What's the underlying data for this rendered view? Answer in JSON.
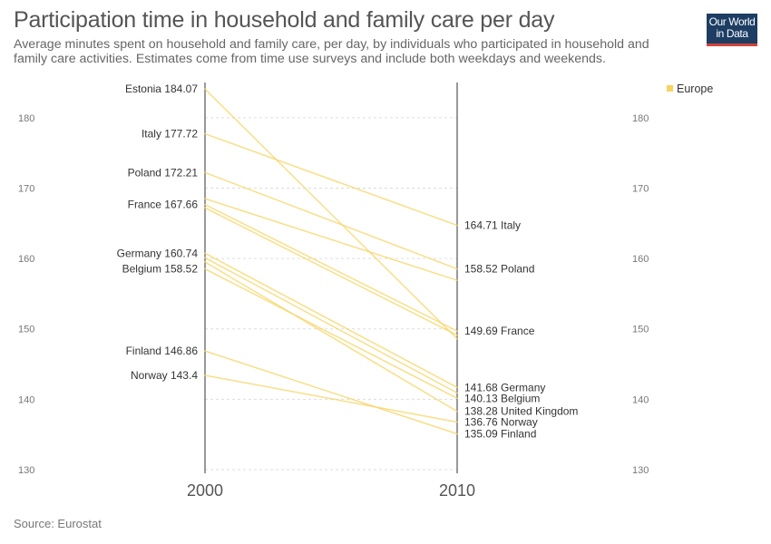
{
  "header": {
    "title": "Participation time in household and family care per day",
    "subtitle": "Average minutes spent on household and family care, per day, by individuals who participated in household and family care activities. Estimates come from time use surveys and include both weekdays and weekends.",
    "logo_line1": "Our World",
    "logo_line2": "in Data"
  },
  "footer": {
    "source": "Source: Eurostat"
  },
  "colors": {
    "series": "#f7d35f",
    "axis": "#333333",
    "grid": "#dddddd",
    "logo_bg": "#1d3d63",
    "logo_bar": "#d1443c"
  },
  "chart_data": {
    "type": "line",
    "x": [
      2000,
      2010
    ],
    "x_tick_labels": [
      "2000",
      "2010"
    ],
    "ylim": [
      130,
      185
    ],
    "y_ticks": [
      130,
      140,
      150,
      160,
      170,
      180
    ],
    "y_tick_labels": [
      "130",
      "140",
      "150",
      "160",
      "170",
      "180"
    ],
    "grid": true,
    "legend": {
      "placement": "top-right",
      "entries": [
        "Europe"
      ]
    },
    "series": [
      {
        "name": "Estonia",
        "values": [
          184.07,
          148.6
        ]
      },
      {
        "name": "Italy",
        "values": [
          177.72,
          164.71
        ]
      },
      {
        "name": "Poland",
        "values": [
          172.21,
          158.52
        ]
      },
      {
        "name": "",
        "values": [
          168.5,
          156.9
        ]
      },
      {
        "name": "France",
        "values": [
          167.66,
          149.69
        ]
      },
      {
        "name": "",
        "values": [
          167.2,
          149.1
        ]
      },
      {
        "name": "Germany",
        "values": [
          160.74,
          141.68
        ]
      },
      {
        "name": "",
        "values": [
          160.1,
          140.9
        ]
      },
      {
        "name": "Belgium",
        "values": [
          158.52,
          140.13
        ]
      },
      {
        "name": "United Kingdom",
        "values": [
          159.5,
          138.28
        ]
      },
      {
        "name": "Finland",
        "values": [
          146.86,
          135.09
        ]
      },
      {
        "name": "Norway",
        "values": [
          143.4,
          136.76
        ]
      }
    ],
    "labels_2000": [
      {
        "text": "Estonia 184.07",
        "value": 184.07
      },
      {
        "text": "Italy 177.72",
        "value": 177.72
      },
      {
        "text": "Poland 172.21",
        "value": 172.21
      },
      {
        "text": "France 167.66",
        "value": 167.66
      },
      {
        "text": "Germany 160.74",
        "value": 160.74
      },
      {
        "text": "Belgium 158.52",
        "value": 158.52
      },
      {
        "text": "Finland 146.86",
        "value": 146.86
      },
      {
        "text": "Norway 143.4",
        "value": 143.4
      }
    ],
    "labels_2010": [
      {
        "text": "164.71 Italy",
        "value": 164.71
      },
      {
        "text": "158.52 Poland",
        "value": 158.52
      },
      {
        "text": "149.69 France",
        "value": 149.69
      },
      {
        "text": "141.68 Germany",
        "value": 141.68
      },
      {
        "text": "140.13 Belgium",
        "value": 140.13
      },
      {
        "text": "138.28 United Kingdom",
        "value": 138.28
      },
      {
        "text": "136.76 Norway",
        "value": 136.76
      },
      {
        "text": "135.09 Finland",
        "value": 135.09
      }
    ]
  }
}
